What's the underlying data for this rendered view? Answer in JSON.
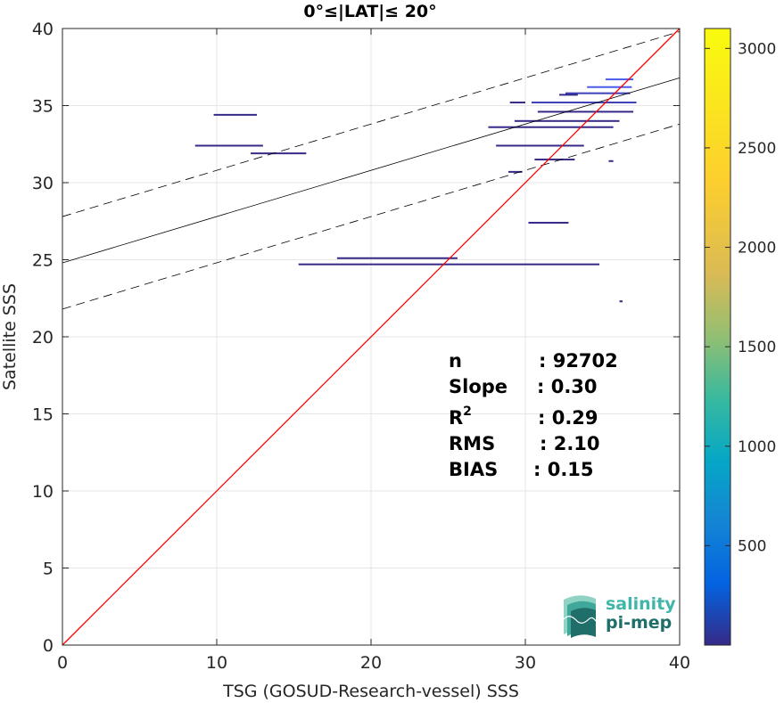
{
  "chart_data": {
    "type": "scatter",
    "title": "0°≤|LAT|≤ 20°",
    "xlabel": "TSG (GOSUD-Research-vessel) SSS",
    "ylabel": "Satellite SSS",
    "xlim": [
      0,
      40
    ],
    "ylim": [
      0,
      40
    ],
    "xticks": [
      0,
      10,
      20,
      30,
      40
    ],
    "yticks": [
      0,
      5,
      10,
      15,
      20,
      25,
      30,
      35,
      40
    ],
    "grid": true,
    "colorbar": {
      "min": 0,
      "max": 3100,
      "ticks": [
        500,
        1000,
        1500,
        2000,
        2500,
        3000
      ],
      "colormap": "parula"
    },
    "reference_line": {
      "name": "1:1",
      "color": "#ff0000",
      "x": [
        0,
        40
      ],
      "y": [
        0,
        40
      ]
    },
    "fit_line": {
      "slope": 0.3,
      "intercept": 24.8,
      "color": "#000000"
    },
    "envelope_offset": 3.0,
    "density_segments": [
      {
        "x0": 9.8,
        "x1": 12.6,
        "y": 34.4,
        "value": 30
      },
      {
        "x0": 8.6,
        "x1": 13.0,
        "y": 32.4,
        "value": 30
      },
      {
        "x0": 12.2,
        "x1": 15.8,
        "y": 31.9,
        "value": 25
      },
      {
        "x0": 17.8,
        "x1": 25.6,
        "y": 25.1,
        "value": 20
      },
      {
        "x0": 15.3,
        "x1": 34.8,
        "y": 24.7,
        "value": 30
      },
      {
        "x0": 28.1,
        "x1": 33.8,
        "y": 32.4,
        "value": 40
      },
      {
        "x0": 27.6,
        "x1": 35.7,
        "y": 33.6,
        "value": 60
      },
      {
        "x0": 29.3,
        "x1": 36.1,
        "y": 34.0,
        "value": 70
      },
      {
        "x0": 30.4,
        "x1": 37.2,
        "y": 35.2,
        "value": 120
      },
      {
        "x0": 30.8,
        "x1": 37.0,
        "y": 34.6,
        "value": 90
      },
      {
        "x0": 32.6,
        "x1": 36.8,
        "y": 35.8,
        "value": 200
      },
      {
        "x0": 34.0,
        "x1": 36.9,
        "y": 36.2,
        "value": 350
      },
      {
        "x0": 35.2,
        "x1": 37.0,
        "y": 36.7,
        "value": 500
      },
      {
        "x0": 29.0,
        "x1": 30.0,
        "y": 35.2,
        "value": 20
      },
      {
        "x0": 32.2,
        "x1": 33.4,
        "y": 35.7,
        "value": 20
      },
      {
        "x0": 28.9,
        "x1": 29.8,
        "y": 30.7,
        "value": 20
      },
      {
        "x0": 30.2,
        "x1": 32.8,
        "y": 27.4,
        "value": 25
      },
      {
        "x0": 30.6,
        "x1": 33.2,
        "y": 31.5,
        "value": 20
      },
      {
        "x0": 35.4,
        "x1": 35.7,
        "y": 31.4,
        "value": 15
      },
      {
        "x0": 36.1,
        "x1": 36.3,
        "y": 22.3,
        "value": 15
      }
    ],
    "stats": [
      {
        "key": "n",
        "value": ": 92702"
      },
      {
        "key": "Slope",
        "value": ": 0.30"
      },
      {
        "key": "R",
        "sup": "2",
        "value": ": 0.29"
      },
      {
        "key": "RMS",
        "value": ": 2.10"
      },
      {
        "key": "BIAS",
        "value": ": 0.15"
      }
    ]
  },
  "logo": {
    "line1": "salinity",
    "line2": "pi-mep",
    "color1": "#3fb6a8",
    "color2": "#1f6e6a"
  }
}
